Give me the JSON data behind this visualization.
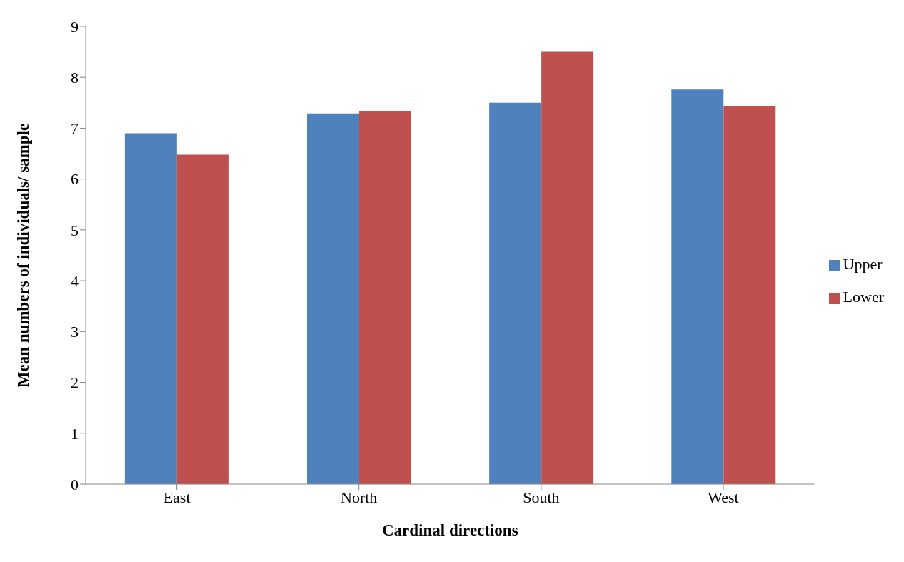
{
  "chart_data": {
    "type": "bar",
    "xlabel": "Cardinal directions",
    "ylabel": "Mean numbers of individuals/ sample",
    "categories": [
      "East",
      "North",
      "South",
      "West"
    ],
    "series": [
      {
        "name": "Upper",
        "color": "#4f81bd",
        "values": [
          6.9,
          7.29,
          7.5,
          7.76
        ]
      },
      {
        "name": "Lower",
        "color": "#c0504d",
        "values": [
          6.48,
          7.33,
          8.5,
          7.43
        ]
      }
    ],
    "ylim": [
      0,
      9
    ],
    "yticks": [
      0,
      1,
      2,
      3,
      4,
      5,
      6,
      7,
      8,
      9
    ],
    "grid": false,
    "legend": "right"
  }
}
